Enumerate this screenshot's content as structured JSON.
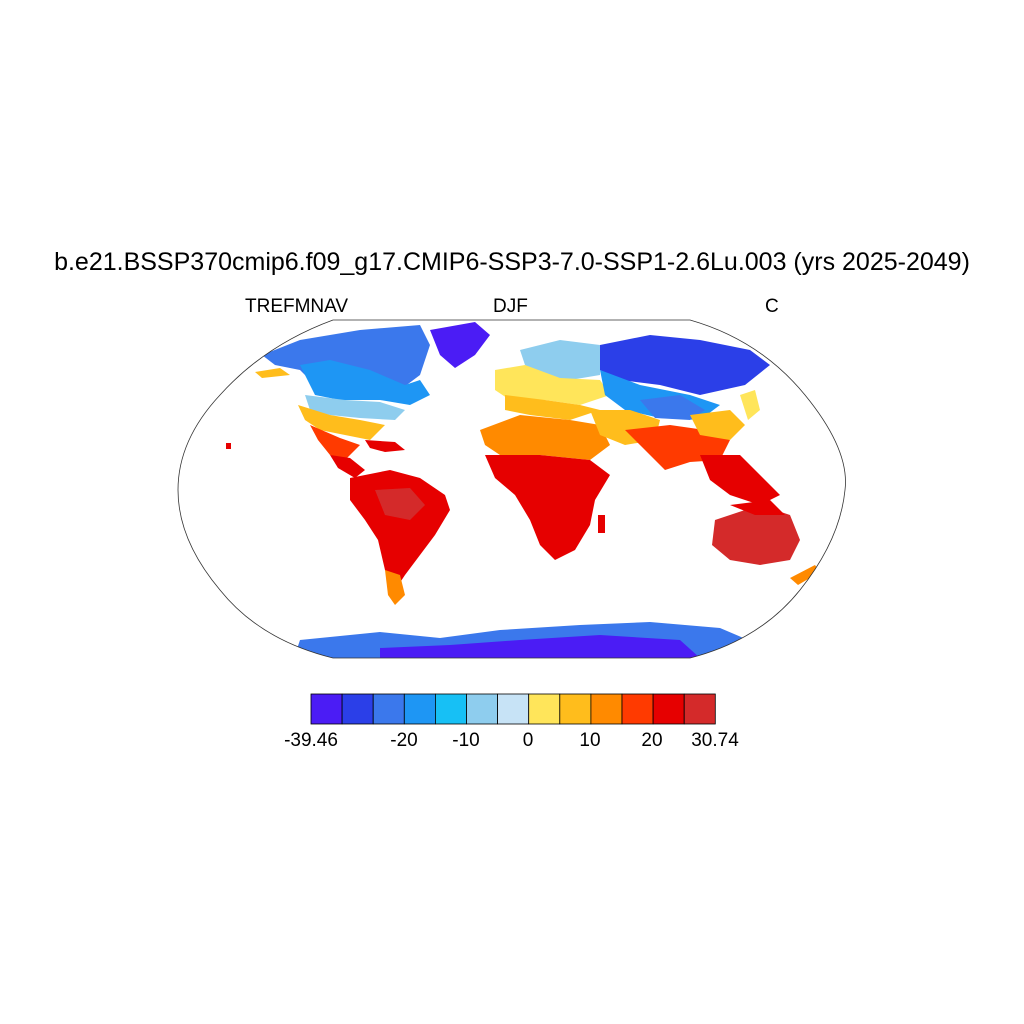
{
  "title": "b.e21.BSSP370cmip6.f09_g17.CMIP6-SSP3-7.0-SSP1-2.6Lu.003 (yrs 2025-2049)",
  "subtitle_left": "TREFMNAV",
  "subtitle_center": "DJF",
  "subtitle_right": "C",
  "colorbar": {
    "colors": [
      "#4b1cf5",
      "#2b3fe8",
      "#3b78ec",
      "#1e96f4",
      "#17c0f5",
      "#8ecdee",
      "#c7e3f6",
      "#ffe55a",
      "#ffbd1c",
      "#ff8a00",
      "#ff3a00",
      "#e60000",
      "#d42a2a"
    ],
    "labels": [
      "-39.46",
      "-20",
      "-10",
      "0",
      "10",
      "20",
      "30.74"
    ]
  },
  "map_fields": {
    "projection": "Robinson",
    "variable": "TREFMNAV",
    "season": "DJF",
    "units": "C",
    "min": -39.46,
    "max": 30.74
  }
}
